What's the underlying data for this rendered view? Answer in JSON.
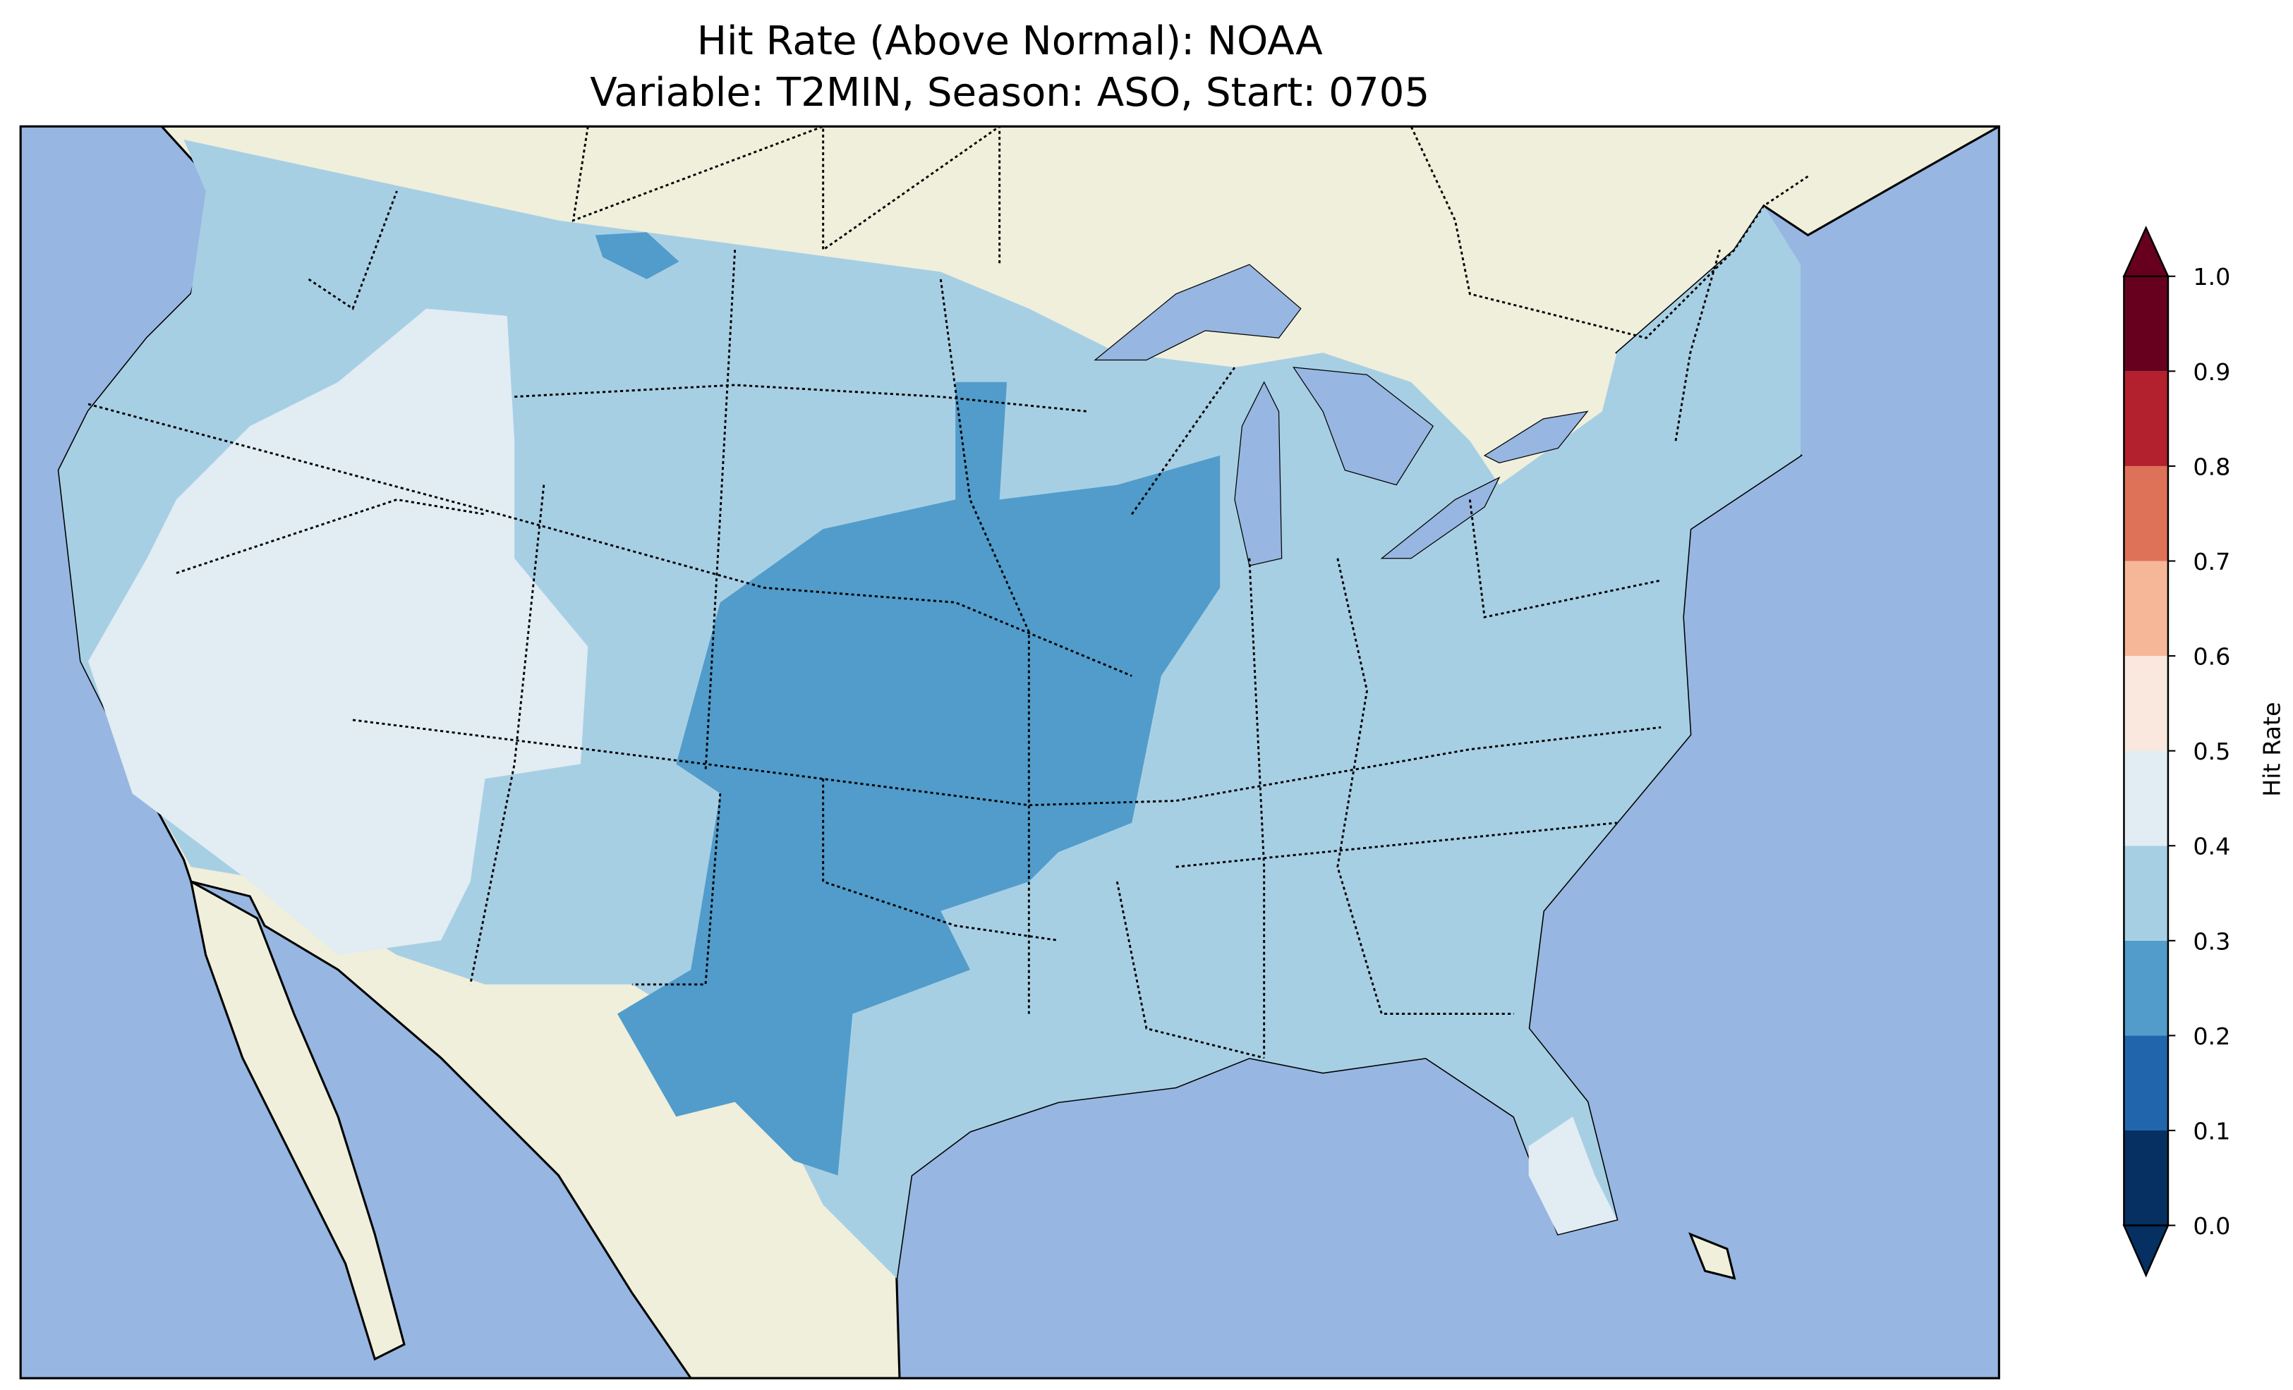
{
  "title_line1": "Hit Rate (Above Normal): NOAA",
  "title_line2": "Variable: T2MIN, Season: ASO, Start: 0705",
  "colors": {
    "ocean": "#97b6e1",
    "land": "#efefdc",
    "border": "#000000"
  },
  "chart_data": {
    "type": "heatmap",
    "title": "Hit Rate (Above Normal): NOAA\nVariable: T2MIN, Season: ASO, Start: 0705",
    "colorbar": {
      "label": "Hit Rate",
      "range": [
        0.0,
        1.0
      ],
      "extend": "both",
      "ticks": [
        "0.0",
        "0.1",
        "0.2",
        "0.3",
        "0.4",
        "0.5",
        "0.6",
        "0.7",
        "0.8",
        "0.9",
        "1.0"
      ],
      "bins": [
        {
          "range": [
            0.0,
            0.1
          ],
          "color": "#053061"
        },
        {
          "range": [
            0.1,
            0.2
          ],
          "color": "#2166ac"
        },
        {
          "range": [
            0.2,
            0.3
          ],
          "color": "#519ccb"
        },
        {
          "range": [
            0.3,
            0.4
          ],
          "color": "#a7cfe4"
        },
        {
          "range": [
            0.4,
            0.5
          ],
          "color": "#e1ecf3"
        },
        {
          "range": [
            0.5,
            0.6
          ],
          "color": "#fae7dd"
        },
        {
          "range": [
            0.6,
            0.7
          ],
          "color": "#f6b799"
        },
        {
          "range": [
            0.7,
            0.8
          ],
          "color": "#de7259"
        },
        {
          "range": [
            0.8,
            0.9
          ],
          "color": "#b2212d"
        },
        {
          "range": [
            0.9,
            1.0
          ],
          "color": "#67001f"
        }
      ]
    },
    "regions": [
      {
        "name": "Most of CONUS (east, north, Pacific NW)",
        "bin": [
          0.3,
          0.4
        ]
      },
      {
        "name": "Great Basin / Southwest / California / Florida peninsula",
        "bin": [
          0.4,
          0.5
        ]
      },
      {
        "name": "Central Plains, Texas, Midwest, Oklahoma",
        "bin": [
          0.2,
          0.3
        ]
      }
    ]
  }
}
